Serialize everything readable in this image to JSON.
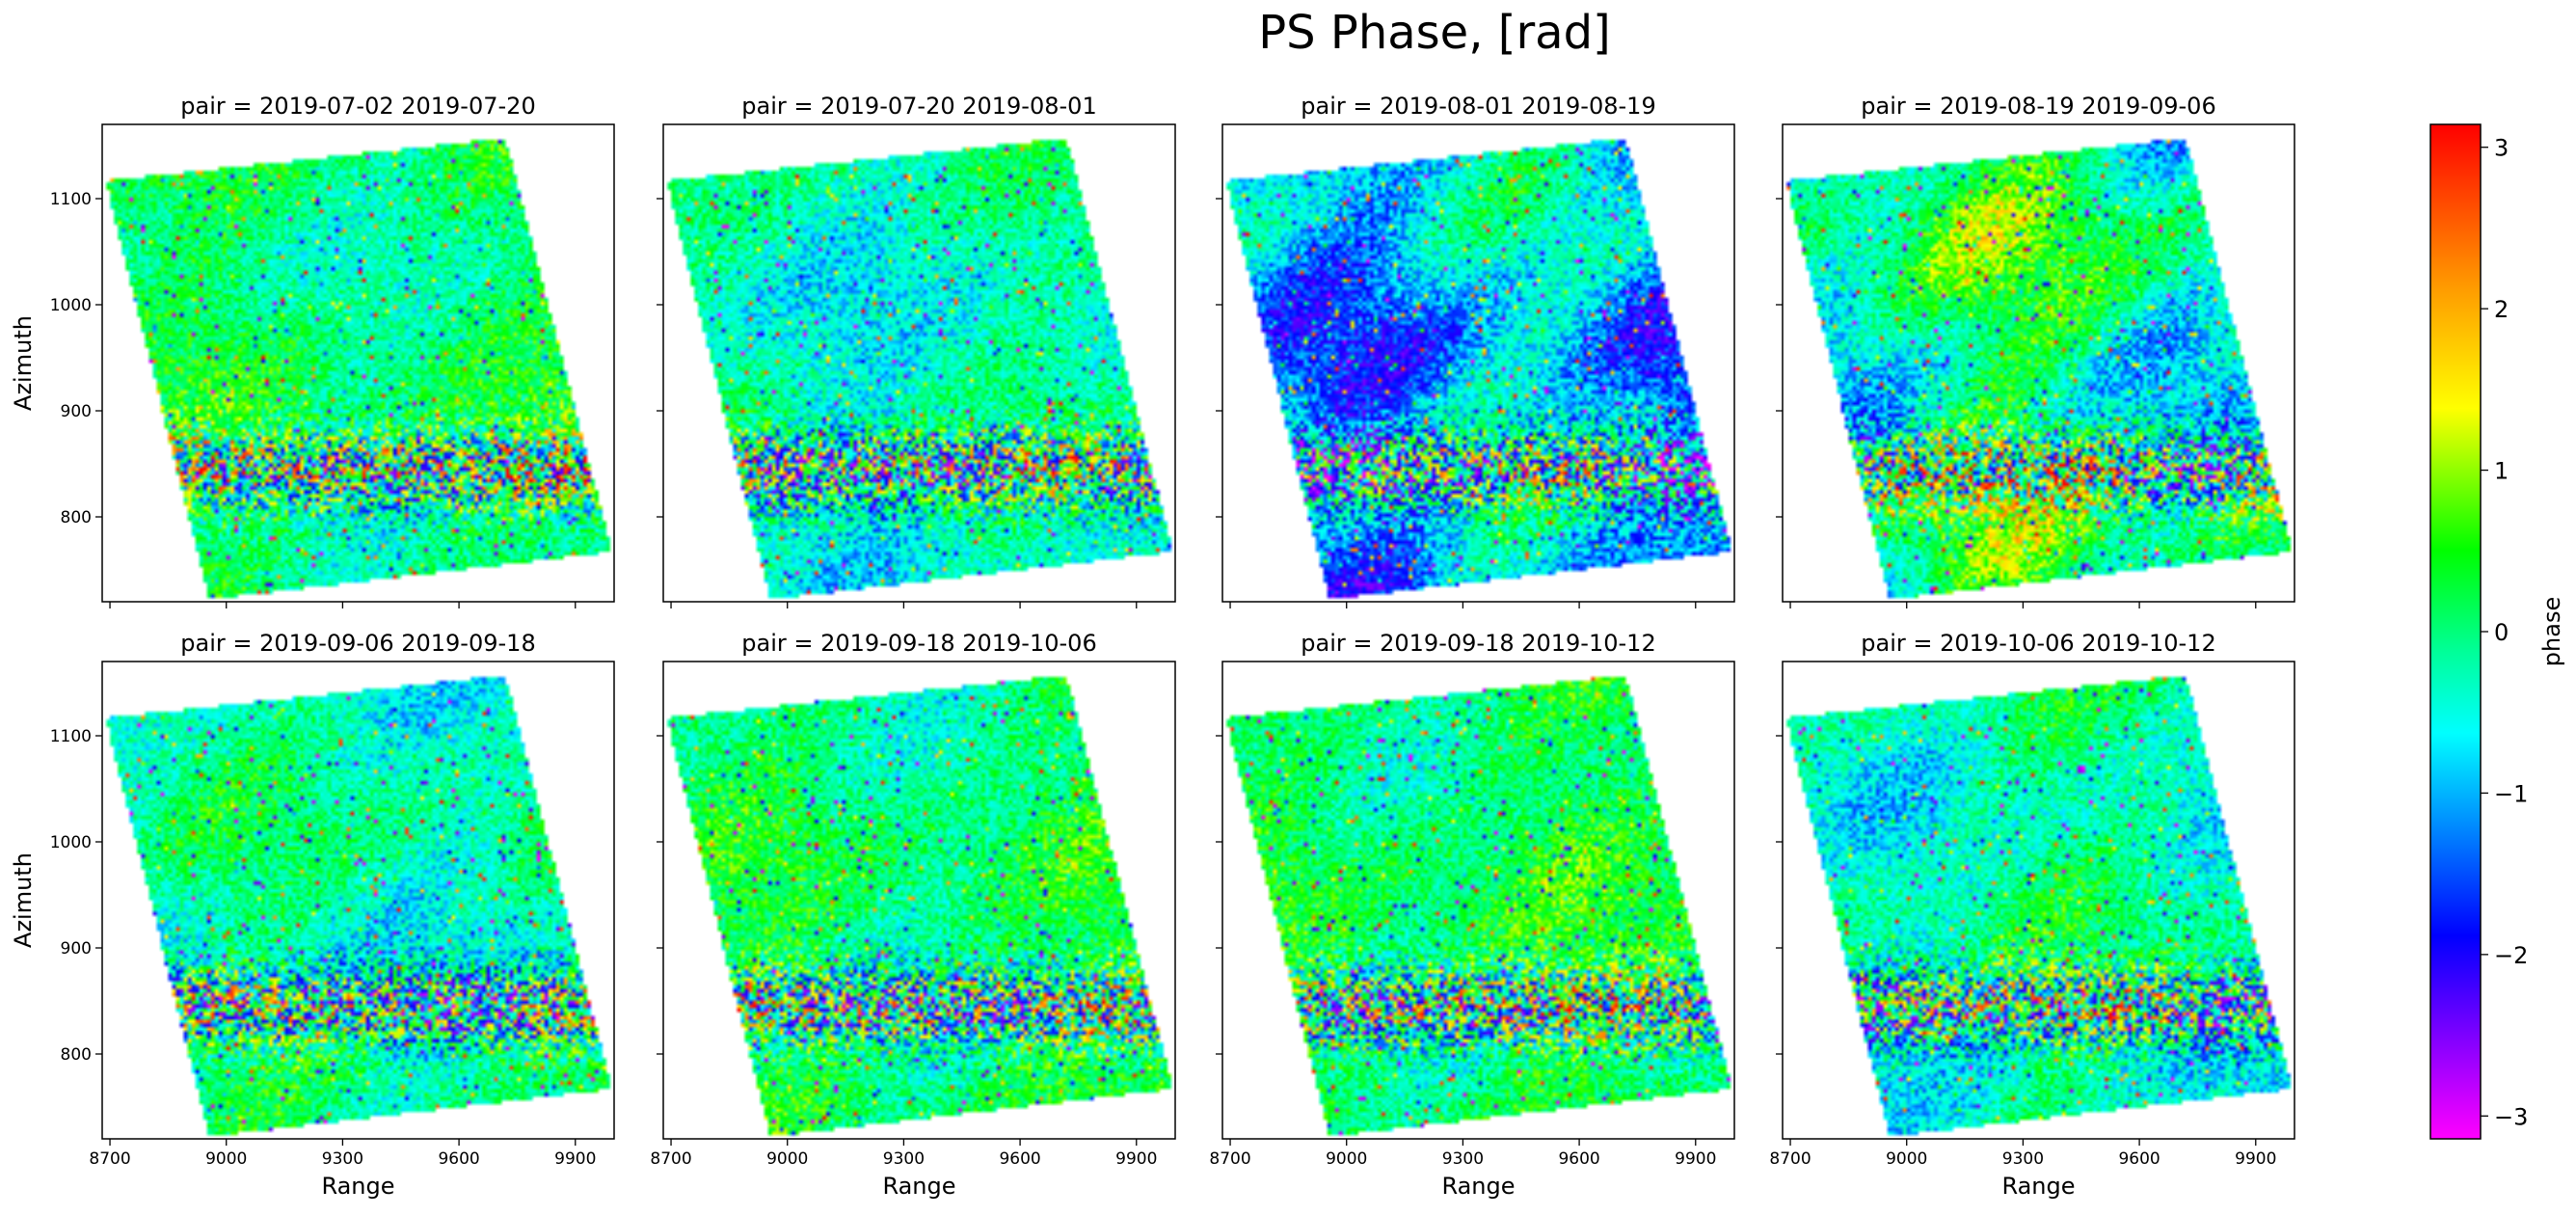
{
  "figure": {
    "title": "PS Phase, [rad]"
  },
  "colorbar": {
    "label": "phase",
    "min": -3.14159,
    "max": 3.14159,
    "ticks": [
      3,
      2,
      1,
      0,
      -1,
      -2,
      -3
    ],
    "tick_labels": [
      "3",
      "2",
      "1",
      "0",
      "−1",
      "−2",
      "−3"
    ],
    "colormap": "gist_rainbow_r",
    "colors": [
      "#ff0000",
      "#ff8000",
      "#ffff00",
      "#00ff00",
      "#00ffff",
      "#0000ff",
      "#8000ff",
      "#ff00ff"
    ]
  },
  "axes_common": {
    "xlabel": "Range",
    "ylabel": "Azimuth",
    "xticks": [
      8700,
      9000,
      9300,
      9600,
      9900
    ],
    "yticks": [
      800,
      900,
      1000,
      1100
    ],
    "xlim": [
      8680,
      10000
    ],
    "ylim": [
      720,
      1170
    ]
  },
  "chart_data": [
    {
      "type": "heatmap",
      "title": "pair = 2019-07-02 2019-07-20",
      "pair": [
        "2019-07-02",
        "2019-07-20"
      ],
      "dominant_phase": 0.4,
      "variability": 0.45
    },
    {
      "type": "heatmap",
      "title": "pair = 2019-07-20 2019-08-01",
      "pair": [
        "2019-07-20",
        "2019-08-01"
      ],
      "dominant_phase": 0.0,
      "variability": 0.45
    },
    {
      "type": "heatmap",
      "title": "pair = 2019-08-01 2019-08-19",
      "pair": [
        "2019-08-01",
        "2019-08-19"
      ],
      "dominant_phase": -0.6,
      "variability": 0.9
    },
    {
      "type": "heatmap",
      "title": "pair = 2019-08-19 2019-09-06",
      "pair": [
        "2019-08-19",
        "2019-09-06"
      ],
      "dominant_phase": 0.3,
      "variability": 1.0
    },
    {
      "type": "heatmap",
      "title": "pair = 2019-09-06 2019-09-18",
      "pair": [
        "2019-09-06",
        "2019-09-18"
      ],
      "dominant_phase": 0.1,
      "variability": 0.5
    },
    {
      "type": "heatmap",
      "title": "pair = 2019-09-18 2019-10-06",
      "pair": [
        "2019-09-18",
        "2019-10-06"
      ],
      "dominant_phase": 0.4,
      "variability": 0.45
    },
    {
      "type": "heatmap",
      "title": "pair = 2019-09-18 2019-10-12",
      "pair": [
        "2019-09-18",
        "2019-10-12"
      ],
      "dominant_phase": 0.5,
      "variability": 0.45
    },
    {
      "type": "heatmap",
      "title": "pair = 2019-10-06 2019-10-12",
      "pair": [
        "2019-10-06",
        "2019-10-12"
      ],
      "dominant_phase": 0.1,
      "variability": 0.55
    }
  ]
}
